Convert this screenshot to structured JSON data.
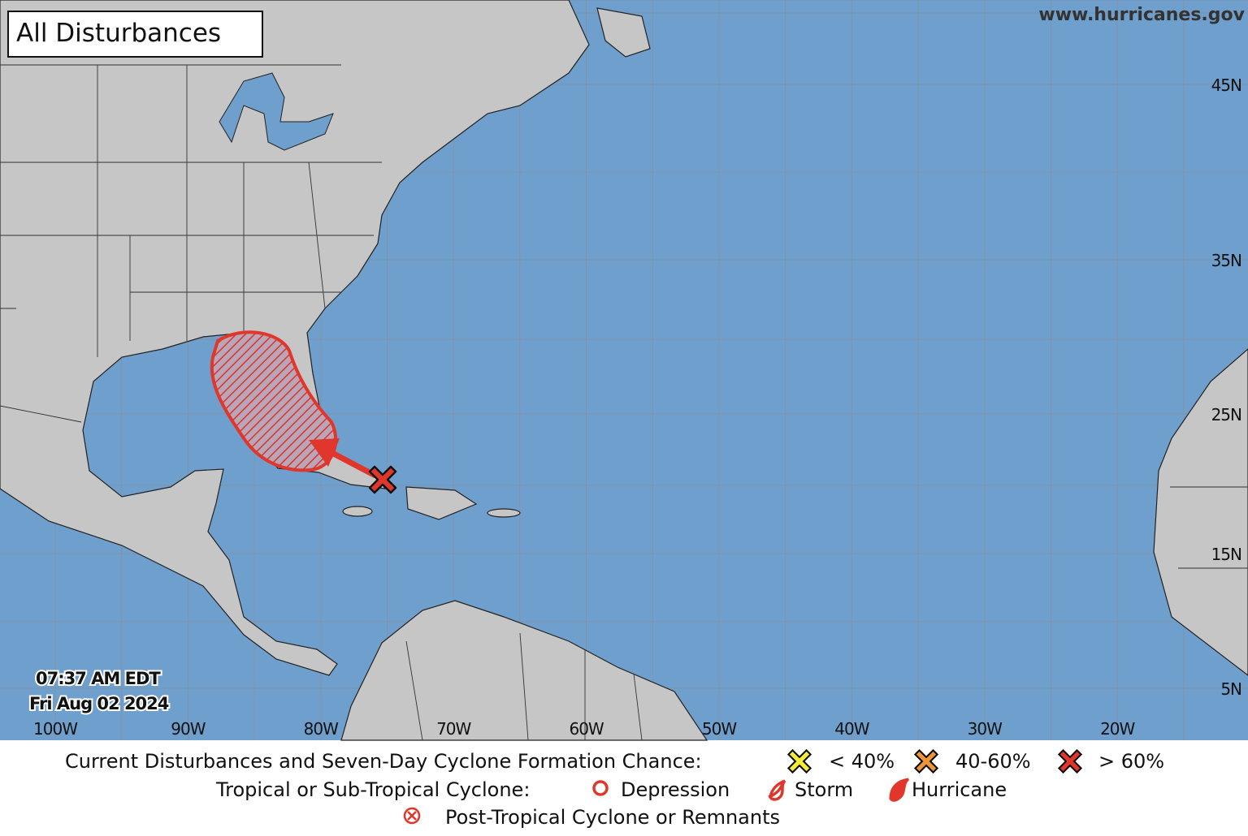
{
  "header": {
    "title": "All Disturbances",
    "website": "www.hurricanes.gov"
  },
  "map": {
    "latitude_labels": [
      "45N",
      "35N",
      "25N",
      "15N",
      "5N"
    ],
    "longitude_labels": [
      "100W",
      "90W",
      "80W",
      "70W",
      "60W",
      "50W",
      "40W",
      "30W",
      "20W"
    ],
    "timestamp": {
      "time": "07:37 AM EDT",
      "date": "Fri Aug 02 2024"
    }
  },
  "legend": {
    "formation_chance": {
      "label": "Current Disturbances and Seven-Day Cyclone Formation Chance:",
      "items": [
        "< 40%",
        "40-60%",
        "> 60%"
      ]
    },
    "cyclone": {
      "label": "Tropical or Sub-Tropical Cyclone:",
      "items": [
        "Depression",
        "Storm",
        "Hurricane"
      ]
    },
    "post_tropical": "Post-Tropical Cyclone or Remnants"
  }
}
